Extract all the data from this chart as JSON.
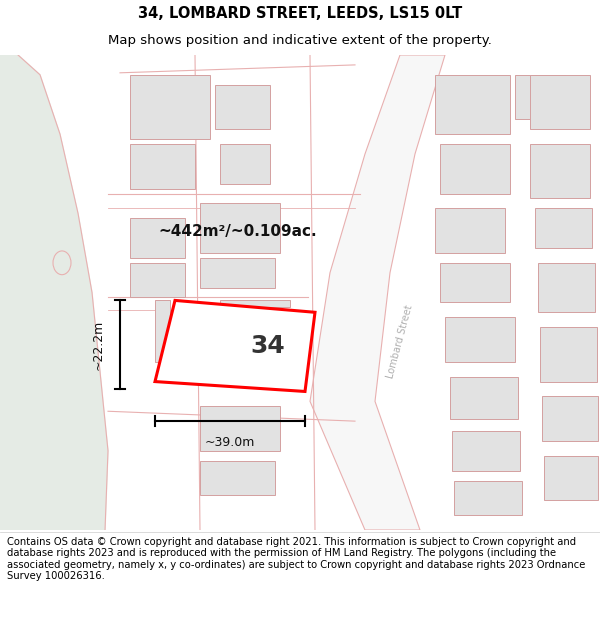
{
  "title": "34, LOMBARD STREET, LEEDS, LS15 0LT",
  "subtitle": "Map shows position and indicative extent of the property.",
  "footer": "Contains OS data © Crown copyright and database right 2021. This information is subject to Crown copyright and database rights 2023 and is reproduced with the permission of HM Land Registry. The polygons (including the associated geometry, namely x, y co-ordinates) are subject to Crown copyright and database rights 2023 Ordnance Survey 100026316.",
  "area_label": "~442m²/~0.109ac.",
  "width_label": "~39.0m",
  "height_label": "~22.2m",
  "number_label": "34",
  "street_label": "Lombard Street",
  "map_bg": "#f7f7f7",
  "green_color": "#e5ebe5",
  "road_line_color": "#e8b0b0",
  "building_fill": "#e2e2e2",
  "building_edge": "#d4a0a0",
  "property_color": "#ff0000",
  "title_fontsize": 10.5,
  "subtitle_fontsize": 9.5,
  "footer_fontsize": 7.2,
  "annotation_color": "#111111",
  "street_label_color": "#b0b0b0",
  "fig_width": 6.0,
  "fig_height": 6.25
}
